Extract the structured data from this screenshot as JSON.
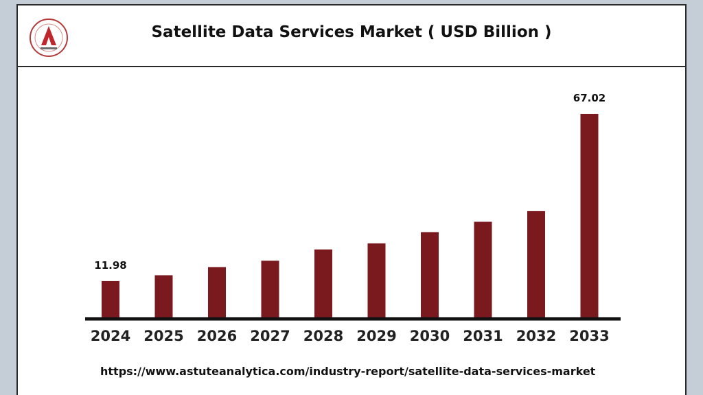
{
  "colors": {
    "bar": "#7a1a1f",
    "axis": "#111111",
    "background": "#c5ced6"
  },
  "header": {
    "logo_icon": "astute-analytica-logo-icon"
  },
  "chart_data": {
    "type": "bar",
    "title": "Satellite Data Services Market ( USD Billion )",
    "categories": [
      "2024",
      "2025",
      "2026",
      "2027",
      "2028",
      "2029",
      "2030",
      "2031",
      "2032",
      "2033"
    ],
    "values": [
      11.98,
      13.9,
      16.6,
      18.7,
      22.4,
      24.4,
      28.1,
      31.5,
      35.0,
      67.02
    ],
    "data_labels": [
      {
        "index": 0,
        "text": "11.98"
      },
      {
        "index": 9,
        "text": "67.02"
      }
    ],
    "xlabel": "",
    "ylabel": "",
    "grid": false,
    "y_axis_visible": false
  },
  "footer": {
    "url": "https://www.astuteanalytica.com/industry-report/satellite-data-services-market"
  }
}
